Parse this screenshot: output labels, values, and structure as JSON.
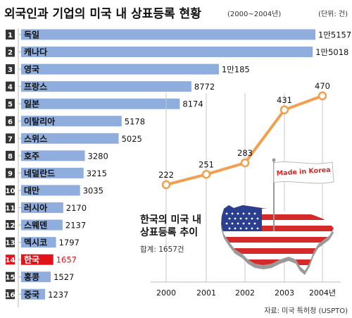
{
  "header": {
    "title": "외국인과 기업의 미국 내 상표등록 현황",
    "period": "(2000~2004년)",
    "unit": "(단위: 건)"
  },
  "colors": {
    "bar": "#8faedd",
    "highlight_bar": "#e0121a",
    "highlight_text": "#e0121a",
    "rank_badge": "#333333",
    "line": "#f0a050",
    "grid": "#c8c8c8"
  },
  "chart_data": [
    {
      "type": "bar",
      "orientation": "horizontal",
      "title": "외국인과 기업의 미국 내 상표등록 현황",
      "subtitle": "(2000~2004년)",
      "unit": "(단위: 건)",
      "ranks": [
        "1",
        "2",
        "3",
        "4",
        "5",
        "6",
        "7",
        "8",
        "9",
        "10",
        "11",
        "12",
        "13",
        "14",
        "15",
        "16"
      ],
      "categories": [
        "독일",
        "캐나다",
        "영국",
        "프랑스",
        "일본",
        "이탈리아",
        "스위스",
        "호주",
        "네덜란드",
        "대만",
        "러시아",
        "스웨덴",
        "멕시코",
        "한국",
        "홍콩",
        "중국"
      ],
      "values": [
        15157,
        15018,
        10185,
        8772,
        8174,
        5178,
        5025,
        3280,
        3215,
        3035,
        2170,
        2137,
        1797,
        1657,
        1527,
        1237
      ],
      "value_labels": [
        "1만5157",
        "1만5018",
        "1만185",
        "8772",
        "8174",
        "5178",
        "5025",
        "3280",
        "3215",
        "3035",
        "2170",
        "2137",
        "1797",
        "1657",
        "1527",
        "1237"
      ],
      "highlight_index": 13
    },
    {
      "type": "line",
      "title": "한국의 미국 내 상표등록 추이",
      "total": "합계: 1657건",
      "x": [
        "2000",
        "2001",
        "2002",
        "2003",
        "2004년"
      ],
      "values": [
        222,
        251,
        283,
        431,
        470
      ],
      "value_labels": [
        "222",
        "251",
        "283",
        "431",
        "470"
      ],
      "grid": true
    }
  ],
  "flag_text": "Made in Korea",
  "source": "자료: 미국 특허청 (USPTO)"
}
